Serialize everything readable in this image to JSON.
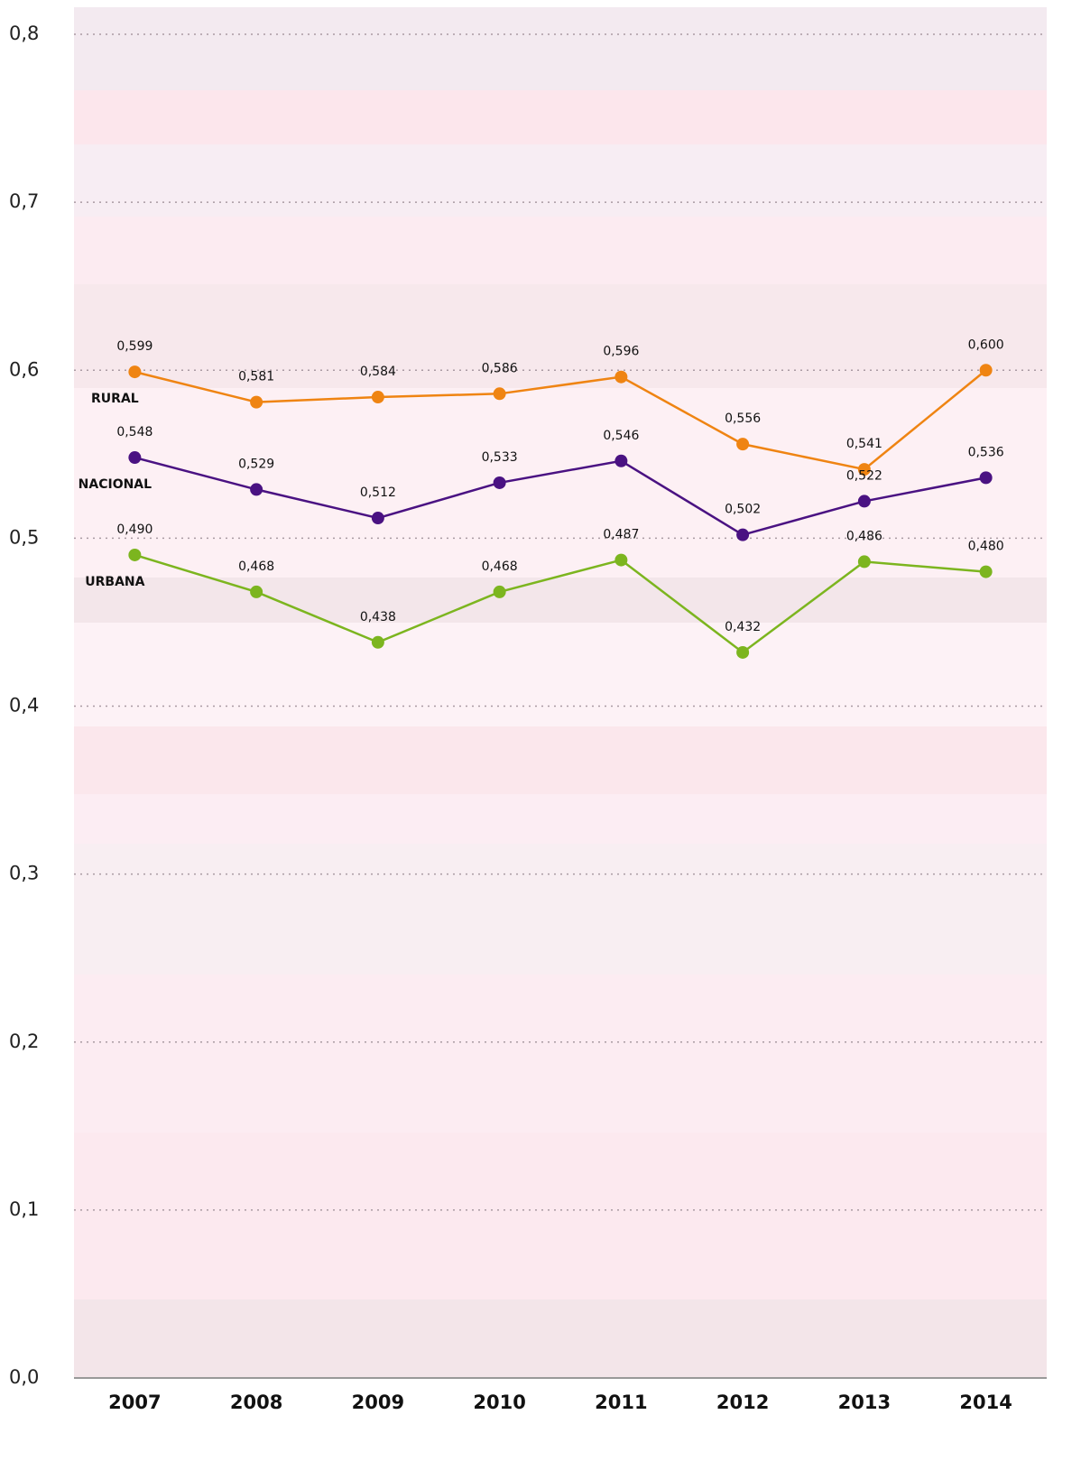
{
  "chart_data": {
    "type": "line",
    "categories": [
      "2007",
      "2008",
      "2009",
      "2010",
      "2011",
      "2012",
      "2013",
      "2014"
    ],
    "series": [
      {
        "name": "RURAL",
        "color": "#ef8412",
        "values": [
          0.599,
          0.581,
          0.584,
          0.586,
          0.596,
          0.556,
          0.541,
          0.6
        ],
        "value_labels": [
          "0,599",
          "0,581",
          "0,584",
          "0,586",
          "0,596",
          "0,556",
          "0,541",
          "0,600"
        ]
      },
      {
        "name": "NACIONAL",
        "color": "#4a1282",
        "values": [
          0.548,
          0.529,
          0.512,
          0.533,
          0.546,
          0.502,
          0.522,
          0.536
        ],
        "value_labels": [
          "0,548",
          "0,529",
          "0,512",
          "0,533",
          "0,546",
          "0,502",
          "0,522",
          "0,536"
        ]
      },
      {
        "name": "URBANA",
        "color": "#7cb51f",
        "values": [
          0.49,
          0.468,
          0.438,
          0.468,
          0.487,
          0.432,
          0.486,
          0.48
        ],
        "value_labels": [
          "0,490",
          "0,468",
          "0,438",
          "0,468",
          "0,487",
          "0,432",
          "0,486",
          "0,480"
        ]
      }
    ],
    "ylim": [
      0,
      0.8
    ],
    "yticks": [
      {
        "value": 0,
        "label": "0,0"
      },
      {
        "value": 0.1,
        "label": "0,1"
      },
      {
        "value": 0.2,
        "label": "0,2"
      },
      {
        "value": 0.3,
        "label": "0,3"
      },
      {
        "value": 0.4,
        "label": "0,4"
      },
      {
        "value": 0.5,
        "label": "0,5"
      },
      {
        "value": 0.6,
        "label": "0,6"
      },
      {
        "value": 0.7,
        "label": "0,7"
      },
      {
        "value": 0.8,
        "label": "0,8"
      }
    ],
    "grid": true
  }
}
